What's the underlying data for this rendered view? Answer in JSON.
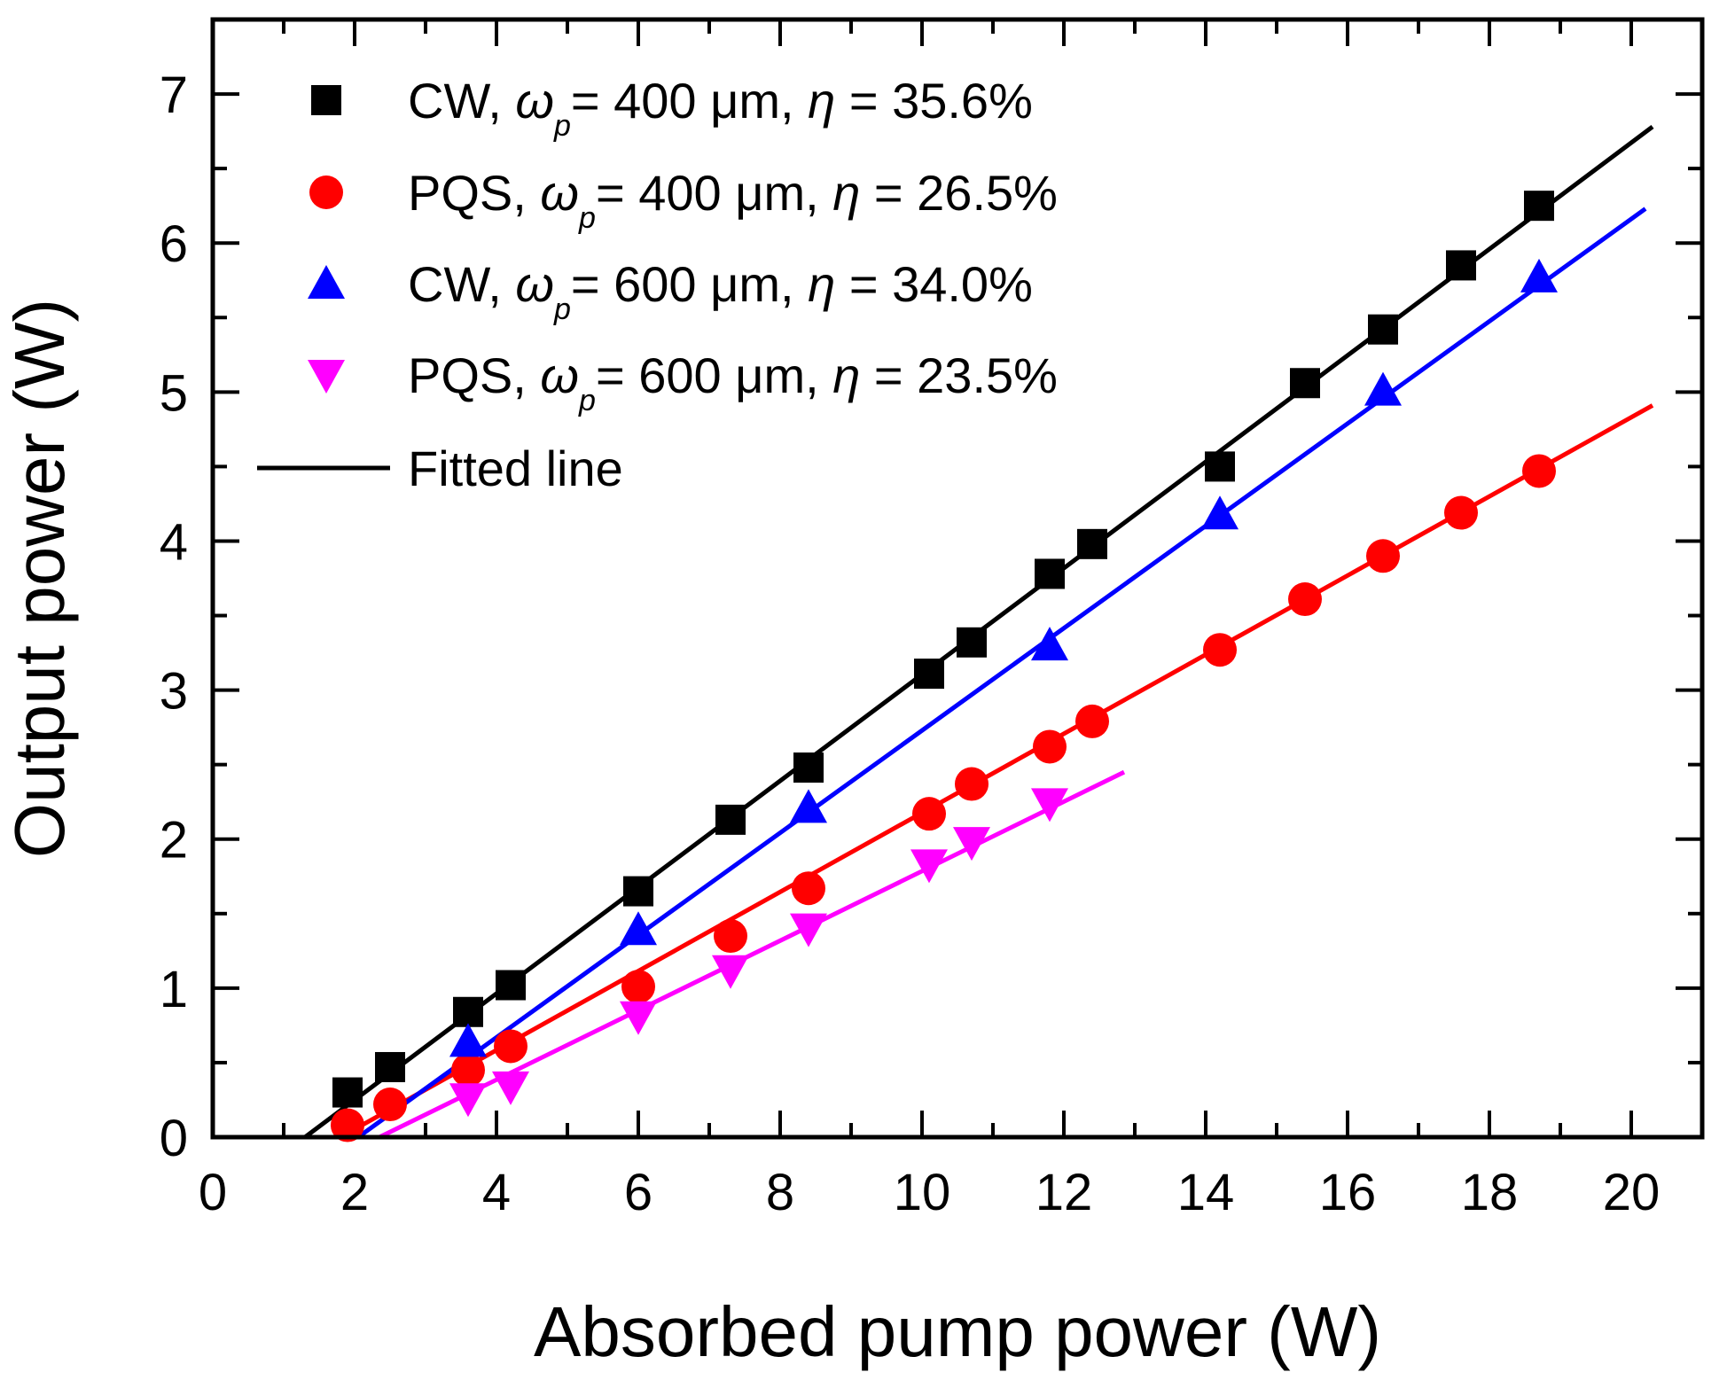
{
  "chart_data": {
    "type": "scatter",
    "title": "",
    "xlabel": "Absorbed pump power (W)",
    "ylabel": "Output power (W)",
    "xlim": [
      0,
      21
    ],
    "ylim": [
      0,
      7.5
    ],
    "x_ticks": [
      "0",
      "2",
      "4",
      "6",
      "8",
      "10",
      "12",
      "14",
      "16",
      "18",
      "20"
    ],
    "y_ticks": [
      "0",
      "1",
      "2",
      "3",
      "4",
      "5",
      "6",
      "7"
    ],
    "legend_position": "top-left",
    "series": [
      {
        "name": "CW, ωp = 400 μm, η = 35.6%",
        "legend": {
          "pre": "CW, ",
          "omega": "ω",
          "sub": "p",
          "mid": "= 400 μm, ",
          "eta": "η",
          "post": " = 35.6%"
        },
        "marker": "square",
        "color": "#000000",
        "x": [
          1.9,
          2.5,
          3.6,
          4.2,
          6.0,
          7.3,
          8.4,
          10.1,
          10.7,
          11.8,
          12.4,
          14.2,
          15.4,
          16.5,
          17.6,
          18.7
        ],
        "y": [
          0.3,
          0.47,
          0.84,
          1.02,
          1.65,
          2.13,
          2.48,
          3.11,
          3.32,
          3.78,
          3.98,
          4.5,
          5.06,
          5.42,
          5.85,
          6.25
        ],
        "fit_x": [
          1.3,
          20.3
        ],
        "fit_y": [
          0.0,
          6.78
        ]
      },
      {
        "name": "PQS, ωp = 400 μm, η = 26.5%",
        "legend": {
          "pre": "PQS, ",
          "omega": "ω",
          "sub": "p",
          "mid": "= 400 μm,  ",
          "eta": "η",
          "post": " = 26.5%"
        },
        "marker": "circle",
        "color": "#ff0000",
        "x": [
          1.9,
          2.5,
          3.6,
          4.2,
          6.0,
          7.3,
          8.4,
          10.1,
          10.7,
          11.8,
          12.4,
          14.2,
          15.4,
          16.5,
          17.6,
          18.7
        ],
        "y": [
          0.08,
          0.22,
          0.45,
          0.61,
          1.01,
          1.35,
          1.67,
          2.17,
          2.37,
          2.62,
          2.79,
          3.27,
          3.61,
          3.9,
          4.19,
          4.47
        ],
        "fit_x": [
          1.8,
          20.3
        ],
        "fit_y": [
          0.0,
          4.91
        ]
      },
      {
        "name": "CW, ωp = 600 μm, η = 34.0%",
        "legend": {
          "pre": " CW, ",
          "omega": "ω",
          "sub": "p",
          "mid": "= 600 μm, ",
          "eta": "η",
          "post": " = 34.0%"
        },
        "marker": "triangle-up",
        "color": "#0000ff",
        "x": [
          3.6,
          6.0,
          8.4,
          11.8,
          14.2,
          16.5,
          18.7
        ],
        "y": [
          0.64,
          1.39,
          2.21,
          3.3,
          4.18,
          5.01,
          5.77
        ],
        "fit_x": [
          2.05,
          20.2
        ],
        "fit_y": [
          0.0,
          6.23
        ]
      },
      {
        "name": "PQS, ωp = 600 μm, η = 23.5%",
        "legend": {
          "pre": "PQS, ",
          "omega": "ω",
          "sub": "p",
          "mid": "= 600 μm, ",
          "eta": "η",
          "post": " = 23.5%"
        },
        "marker": "triangle-down",
        "color": "#ff00ff",
        "x": [
          3.6,
          4.2,
          6.0,
          7.3,
          8.4,
          10.1,
          10.7,
          11.8
        ],
        "y": [
          0.26,
          0.34,
          0.81,
          1.12,
          1.4,
          1.83,
          1.98,
          2.24
        ],
        "fit_x": [
          2.35,
          12.85
        ],
        "fit_y": [
          0.0,
          2.45
        ]
      }
    ],
    "fitted_line_label": "Fitted line"
  }
}
